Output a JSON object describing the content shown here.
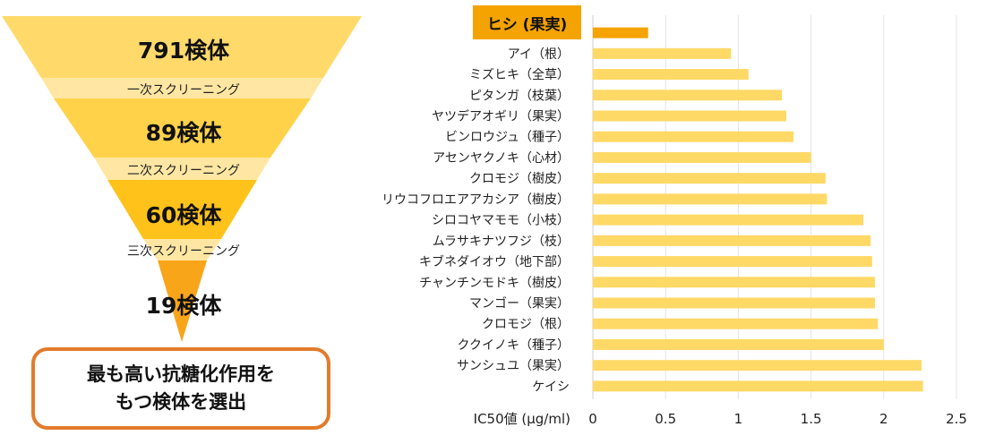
{
  "funnel": {
    "tiers": [
      {
        "count": "791検体",
        "color": "#FFDA6B"
      },
      {
        "count": "89検体",
        "color": "#FFD24A"
      },
      {
        "count": "60検体",
        "color": "#FFC21A"
      },
      {
        "count": "19検体",
        "color": "#F9A51A"
      }
    ],
    "stages": [
      {
        "label": "一次スクリーニング",
        "color": "#FFE7A3"
      },
      {
        "label": "二次スクリーニング",
        "color": "#FFE7A3"
      },
      {
        "label": "三次スクリーニング",
        "color": "#FFE7A3"
      }
    ],
    "result": {
      "line1": "最も高い抗糖化作用を",
      "line2": "もつ検体を選出"
    }
  },
  "chart_data": {
    "type": "bar",
    "orientation": "horizontal",
    "categories": [
      "ヒシ (果実)",
      "アイ（根）",
      "ミズヒキ（全草）",
      "ピタンガ（枝葉）",
      "ヤツデアオギリ（果実）",
      "ビンロウジュ（種子）",
      "アセンヤクノキ（心材）",
      "クロモジ（樹皮）",
      "リウコフロエアアカシア（樹皮）",
      "シロコヤマモモ（小枝）",
      "ムラサキナツフジ（枝）",
      "キブネダイオウ（地下部）",
      "チャンチンモドキ（樹皮）",
      "マンゴー（果実）",
      "クロモジ（根）",
      "ククイノキ（種子）",
      "サンシュユ（果実）",
      "ケイシ"
    ],
    "values": [
      0.38,
      0.95,
      1.07,
      1.3,
      1.33,
      1.38,
      1.5,
      1.6,
      1.61,
      1.86,
      1.91,
      1.92,
      1.94,
      1.94,
      1.96,
      2.0,
      2.26,
      2.27
    ],
    "highlight_index": 0,
    "xlabel": "IC50値 (μg/ml)",
    "xlim": [
      0,
      2.5
    ],
    "xticks": [
      "0",
      "0.5",
      "1",
      "1.5",
      "2",
      "2.5"
    ],
    "grid": "vertical",
    "bar_color": "#FFD966",
    "highlight_color": "#F4A300"
  }
}
